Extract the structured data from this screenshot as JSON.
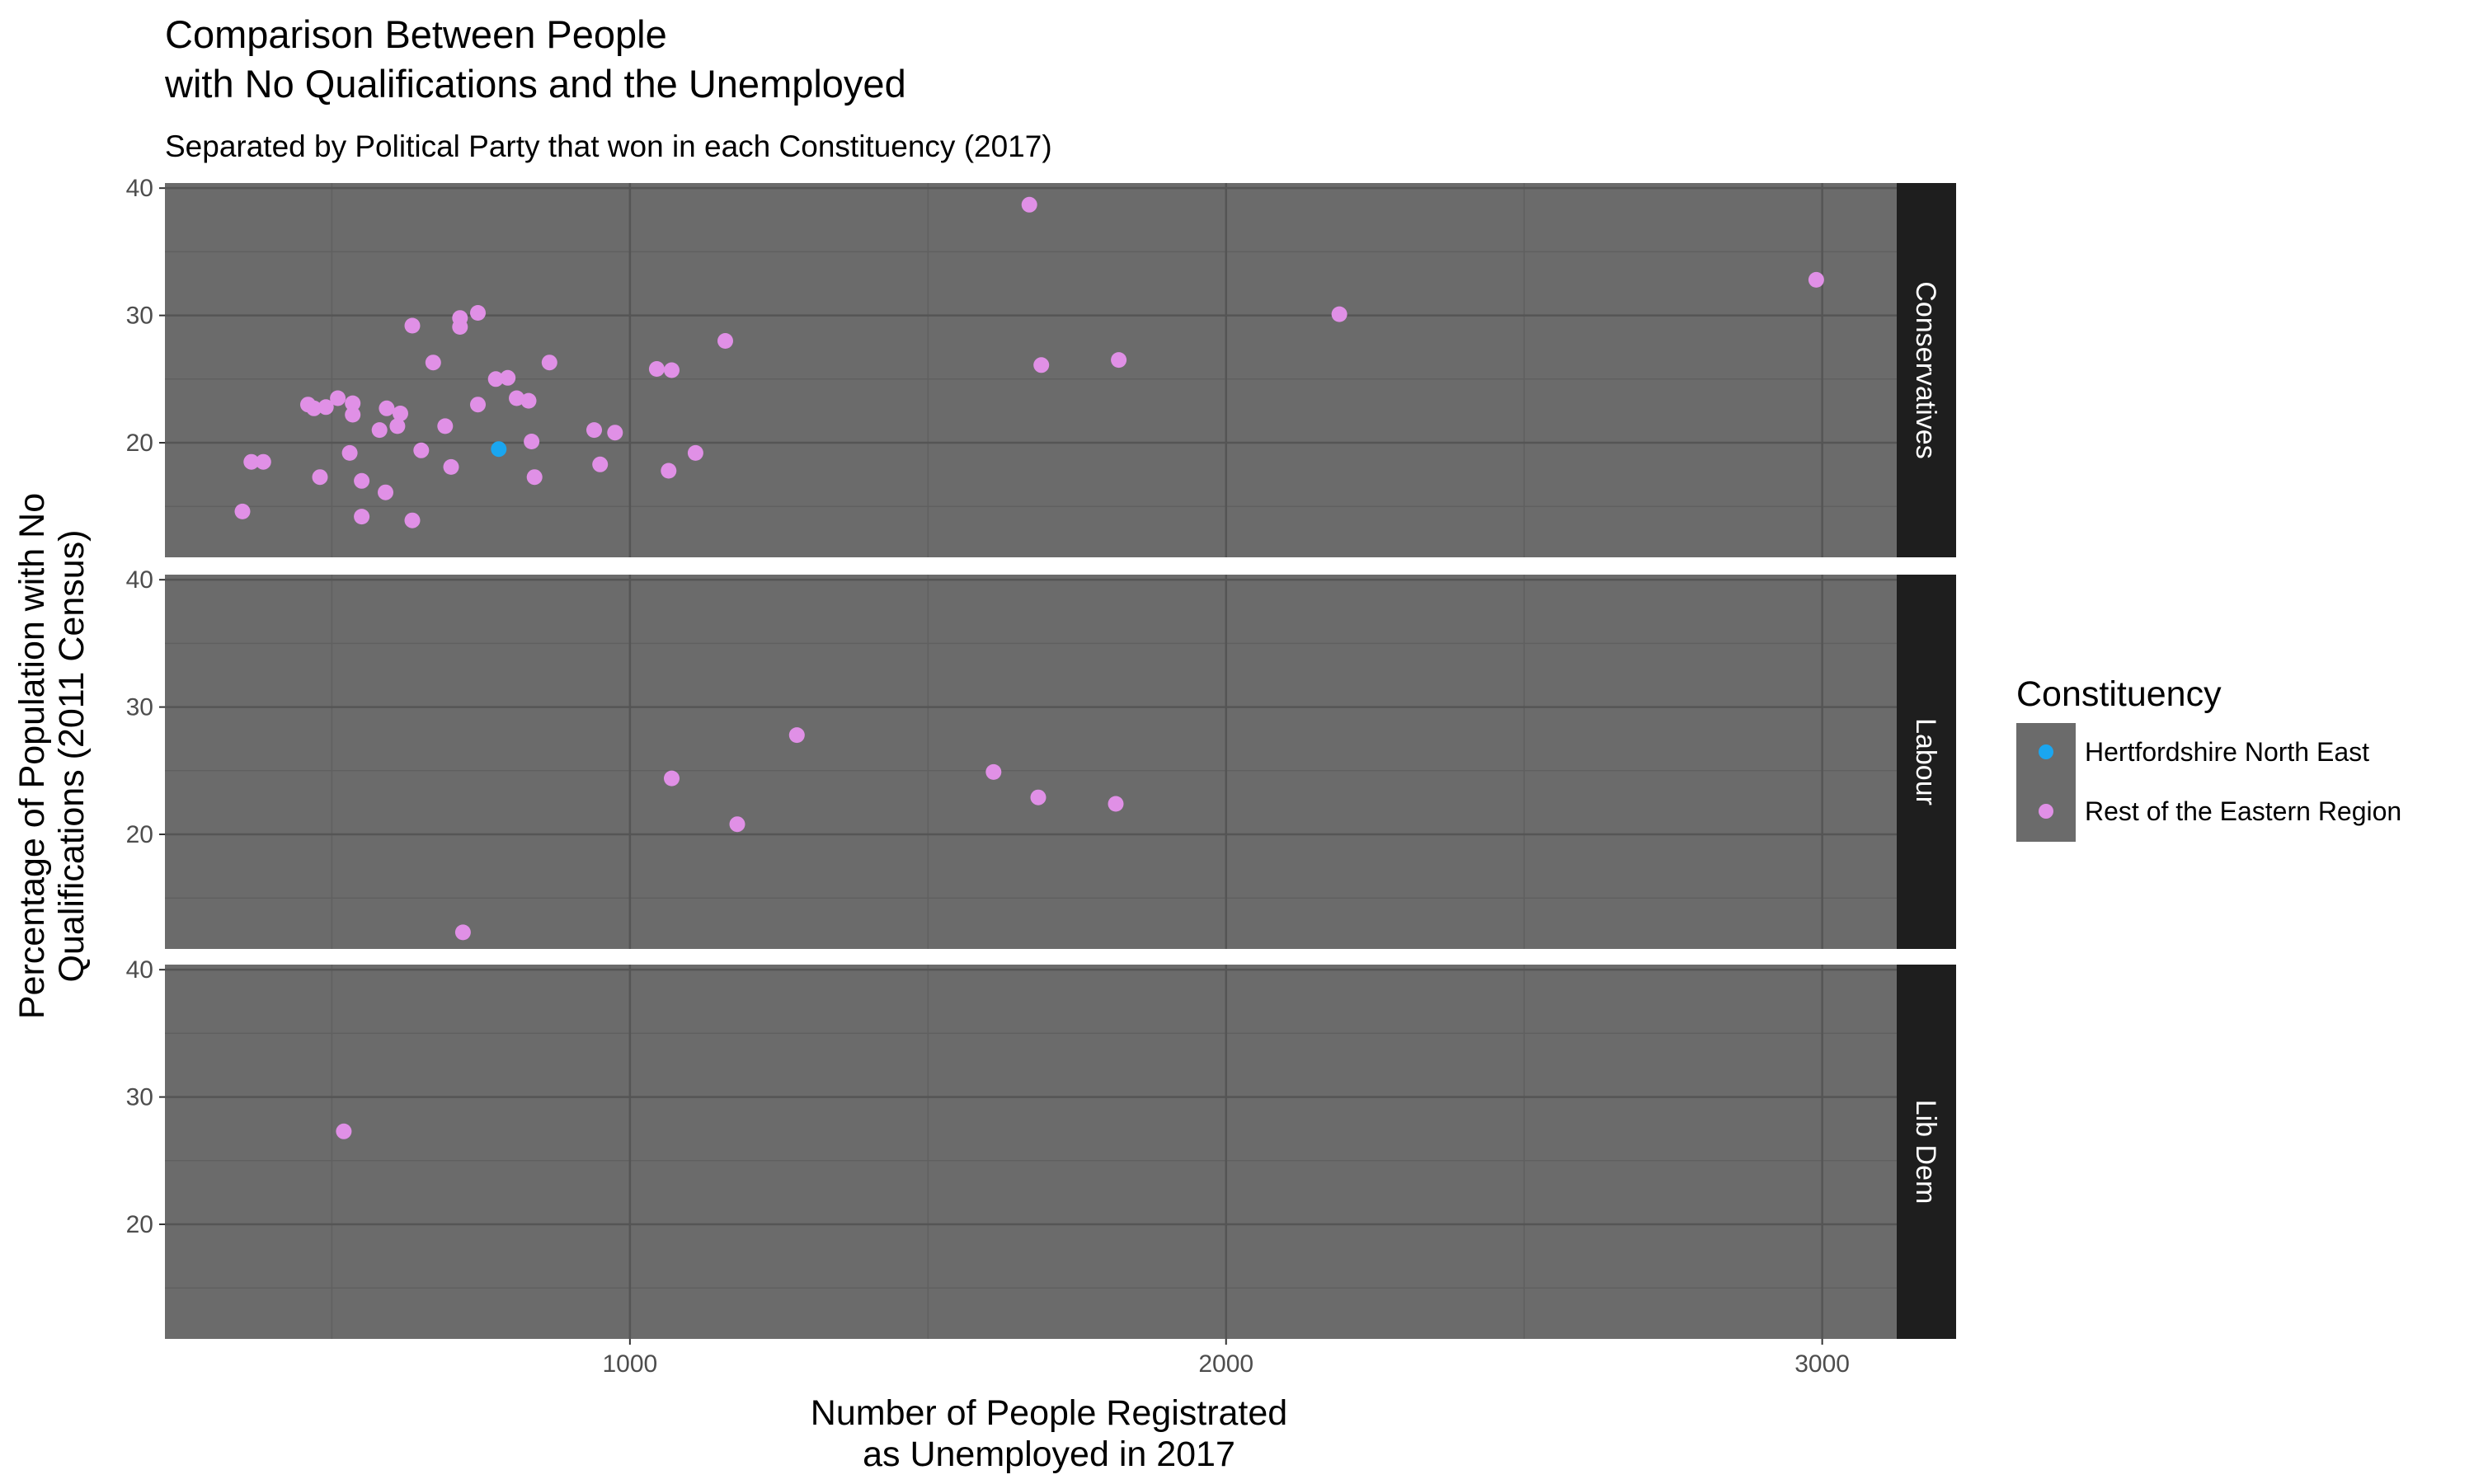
{
  "chart_data": {
    "type": "scatter",
    "title_line1": "Comparison Between People",
    "title_line2": "with No Qualifications and the Unemployed",
    "subtitle": "Separated by Political Party that won in each Constituency (2017)",
    "xlabel_line1": "Number of People Registrated",
    "xlabel_line2": "as Unemployed in 2017",
    "ylabel_line1": "Percentage of Population with No",
    "ylabel_line2": "Qualifications (2011 Census)",
    "xlim": [
      220,
      3125
    ],
    "ylim": [
      11,
      40.4
    ],
    "x_ticks": [
      1000,
      2000,
      3000
    ],
    "y_ticks": [
      20,
      30,
      40
    ],
    "grid": true,
    "legend_position": "right",
    "legend": {
      "title": "Constituency",
      "items": [
        {
          "label": "Hertfordshire North East",
          "color": "#1aa6f0"
        },
        {
          "label": "Rest of the Eastern Region",
          "color": "#e090e6"
        }
      ]
    },
    "colors": {
      "panel_bg": "#6b6b6b",
      "grid_major": "#555555",
      "grid_minor": "#606060",
      "strip_bg": "#1e1e1e",
      "highlight": "#1aa6f0",
      "rest": "#e090e6"
    },
    "facets": [
      {
        "label": "Conservatives",
        "points": [
          [
            780,
            19.5,
            "Hertfordshire North East"
          ],
          [
            350,
            14.6,
            "Rest of the Eastern Region"
          ],
          [
            365,
            18.5,
            "Rest of the Eastern Region"
          ],
          [
            385,
            18.5,
            "Rest of the Eastern Region"
          ],
          [
            460,
            23.0,
            "Rest of the Eastern Region"
          ],
          [
            470,
            22.7,
            "Rest of the Eastern Region"
          ],
          [
            490,
            22.8,
            "Rest of the Eastern Region"
          ],
          [
            480,
            17.3,
            "Rest of the Eastern Region"
          ],
          [
            510,
            23.5,
            "Rest of the Eastern Region"
          ],
          [
            530,
            19.2,
            "Rest of the Eastern Region"
          ],
          [
            535,
            23.1,
            "Rest of the Eastern Region"
          ],
          [
            535,
            22.2,
            "Rest of the Eastern Region"
          ],
          [
            550,
            17.0,
            "Rest of the Eastern Region"
          ],
          [
            550,
            14.2,
            "Rest of the Eastern Region"
          ],
          [
            580,
            21.0,
            "Rest of the Eastern Region"
          ],
          [
            590,
            16.1,
            "Rest of the Eastern Region"
          ],
          [
            592,
            22.7,
            "Rest of the Eastern Region"
          ],
          [
            610,
            21.3,
            "Rest of the Eastern Region"
          ],
          [
            615,
            22.3,
            "Rest of the Eastern Region"
          ],
          [
            635,
            29.2,
            "Rest of the Eastern Region"
          ],
          [
            635,
            13.9,
            "Rest of the Eastern Region"
          ],
          [
            650,
            19.4,
            "Rest of the Eastern Region"
          ],
          [
            670,
            26.3,
            "Rest of the Eastern Region"
          ],
          [
            690,
            21.3,
            "Rest of the Eastern Region"
          ],
          [
            700,
            18.1,
            "Rest of the Eastern Region"
          ],
          [
            715,
            29.8,
            "Rest of the Eastern Region"
          ],
          [
            715,
            29.1,
            "Rest of the Eastern Region"
          ],
          [
            745,
            30.2,
            "Rest of the Eastern Region"
          ],
          [
            745,
            23.0,
            "Rest of the Eastern Region"
          ],
          [
            775,
            25.0,
            "Rest of the Eastern Region"
          ],
          [
            795,
            25.1,
            "Rest of the Eastern Region"
          ],
          [
            810,
            23.5,
            "Rest of the Eastern Region"
          ],
          [
            830,
            23.3,
            "Rest of the Eastern Region"
          ],
          [
            835,
            20.1,
            "Rest of the Eastern Region"
          ],
          [
            840,
            17.3,
            "Rest of the Eastern Region"
          ],
          [
            865,
            26.3,
            "Rest of the Eastern Region"
          ],
          [
            940,
            21.0,
            "Rest of the Eastern Region"
          ],
          [
            950,
            18.3,
            "Rest of the Eastern Region"
          ],
          [
            975,
            20.8,
            "Rest of the Eastern Region"
          ],
          [
            1045,
            25.8,
            "Rest of the Eastern Region"
          ],
          [
            1065,
            17.8,
            "Rest of the Eastern Region"
          ],
          [
            1070,
            25.7,
            "Rest of the Eastern Region"
          ],
          [
            1110,
            19.2,
            "Rest of the Eastern Region"
          ],
          [
            1160,
            28.0,
            "Rest of the Eastern Region"
          ],
          [
            1670,
            38.7,
            "Rest of the Eastern Region"
          ],
          [
            1690,
            26.1,
            "Rest of the Eastern Region"
          ],
          [
            1820,
            26.5,
            "Rest of the Eastern Region"
          ],
          [
            2190,
            30.1,
            "Rest of the Eastern Region"
          ],
          [
            2990,
            32.8,
            "Rest of the Eastern Region"
          ]
        ]
      },
      {
        "label": "Labour",
        "points": [
          [
            1070,
            24.4,
            "Rest of the Eastern Region"
          ],
          [
            1180,
            20.8,
            "Rest of the Eastern Region"
          ],
          [
            1280,
            27.8,
            "Rest of the Eastern Region"
          ],
          [
            1610,
            24.9,
            "Rest of the Eastern Region"
          ],
          [
            1685,
            22.9,
            "Rest of the Eastern Region"
          ],
          [
            1815,
            22.4,
            "Rest of the Eastern Region"
          ],
          [
            720,
            12.3,
            "Rest of the Eastern Region"
          ]
        ]
      },
      {
        "label": "Lib Dem",
        "points": [
          [
            520,
            27.3,
            "Rest of the Eastern Region"
          ]
        ]
      }
    ]
  }
}
